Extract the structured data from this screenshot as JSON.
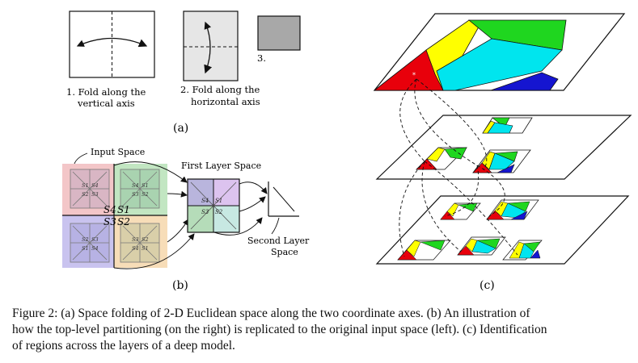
{
  "panel_a": {
    "step1": [
      "1. Fold along the",
      "vertical axis"
    ],
    "step2": [
      "2. Fold along the",
      "horizontal axis"
    ],
    "step3": "3.",
    "label": "(a)"
  },
  "panel_b": {
    "input_space": "Input Space",
    "first_layer_space": "First Layer Space",
    "second_layer_space": [
      "Second Layer",
      "Space"
    ],
    "center_labels": {
      "s4": "S4",
      "s1": "S1",
      "s3": "S3",
      "s2": "S2"
    },
    "label": "(b)"
  },
  "panel_c": {
    "label": "(c)"
  },
  "colors": {
    "input_red": "#f3c6c8",
    "input_green": "#c2e6c2",
    "input_purple": "#c9c3ef",
    "input_orange": "#f7ddb8",
    "region_red": "#e8000b",
    "region_yellow": "#ffff00",
    "region_green": "#1fd61f",
    "region_cyan": "#00e5ee",
    "region_blue": "#1515d0"
  },
  "caption": {
    "line1": "Figure 2:  (a) Space folding of 2-D Euclidean space along the two coordinate axes. (b) An illustration of",
    "line2": "how the top-level partitioning (on the right) is replicated to the original input space (left). (c) Identification",
    "line3": "of regions across the layers of a deep model."
  }
}
